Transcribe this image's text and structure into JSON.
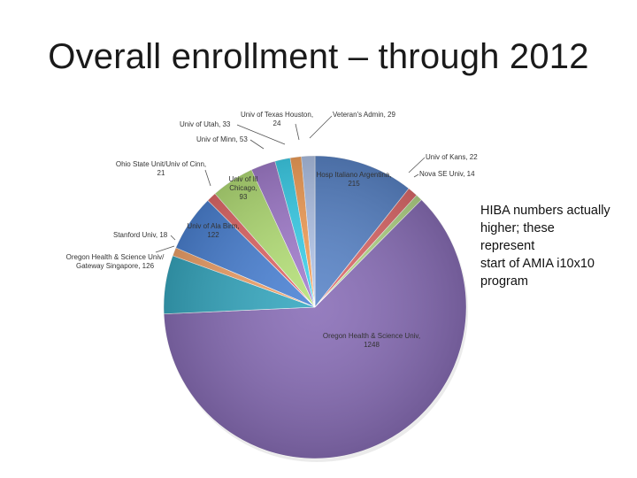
{
  "slide": {
    "title": "Overall enrollment – through 2012",
    "note_lines": [
      "HIBA numbers actually",
      "higher; these",
      "represent",
      "start of AMIA i10x10",
      "program"
    ]
  },
  "chart_data": {
    "type": "pie",
    "title": "",
    "start": "top",
    "direction": "clockwise",
    "slices": [
      {
        "label": "Hosp Italiano  Argentina, 215",
        "value": 215,
        "color": "#5b86c9"
      },
      {
        "label": "Univ of Kans, 22",
        "value": 22,
        "color": "#e06c6c"
      },
      {
        "label": "Nova SE Univ, 14",
        "value": 14,
        "color": "#b6d98a"
      },
      {
        "label": "Oregon Health & Science Univ, 1248",
        "value": 1248,
        "color": "#8a6fb8"
      },
      {
        "label": "Oregon Health & Science Univ/ Gateway Singapore, 126",
        "value": 126,
        "color": "#38a9c1"
      },
      {
        "label": "Stanford Univ, 18",
        "value": 18,
        "color": "#f3a46b"
      },
      {
        "label": "Univ of Ala Birm, 122",
        "value": 122,
        "color": "#4d84d6"
      },
      {
        "label": "Ohio State Unit/Univ of Cinn, 21",
        "value": 21,
        "color": "#e56b6b"
      },
      {
        "label": "Univ of Ill Chicago, 93",
        "value": 93,
        "color": "#b7e27a"
      },
      {
        "label": "Univ of Minn, 53",
        "value": 53,
        "color": "#a47fcf"
      },
      {
        "label": "Univ of Utah, 33",
        "value": 33,
        "color": "#3fd3ee"
      },
      {
        "label": "Univ of Texas Houston, 24",
        "value": 24,
        "color": "#f7a35c"
      },
      {
        "label": "Veteran's Admin, 29",
        "value": 29,
        "color": "#b3c6ea"
      }
    ]
  }
}
